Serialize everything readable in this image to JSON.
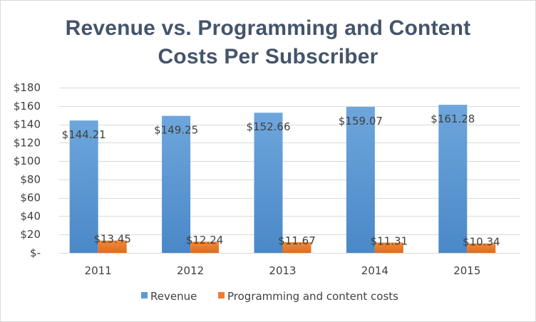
{
  "chart_data": {
    "type": "bar",
    "title_lines": [
      "Revenue vs. Programming and Content",
      "Costs Per Subscriber"
    ],
    "categories": [
      "2011",
      "2012",
      "2013",
      "2014",
      "2015"
    ],
    "series": [
      {
        "name": "Revenue",
        "color": "#5b9bd5",
        "values": [
          144.21,
          149.25,
          152.66,
          159.07,
          161.28
        ],
        "labels": [
          "$144.21",
          "$149.25",
          "$152.66",
          "$159.07",
          "$161.28"
        ]
      },
      {
        "name": "Programming and content costs",
        "color": "#ed7d31",
        "values": [
          13.45,
          12.24,
          11.67,
          11.31,
          10.34
        ],
        "labels": [
          "$13.45",
          "$12.24",
          "$11.67",
          "$11.31",
          "$10.34"
        ]
      }
    ],
    "ylim": [
      0,
      180
    ],
    "yticks": [
      0,
      20,
      40,
      60,
      80,
      100,
      120,
      140,
      160,
      180
    ],
    "ytick_labels": [
      "$-",
      "$20",
      "$40",
      "$60",
      "$80",
      "$100",
      "$120",
      "$140",
      "$160",
      "$180"
    ],
    "grid": true,
    "legend_position": "bottom"
  }
}
